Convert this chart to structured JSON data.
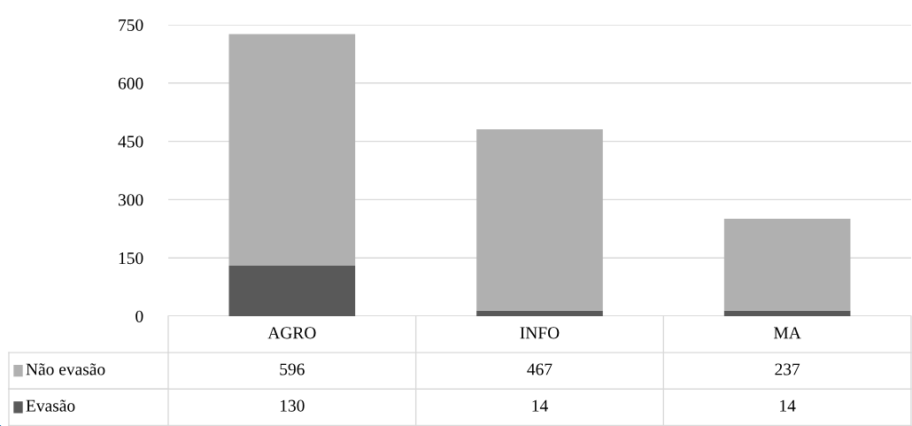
{
  "chart_data": {
    "type": "bar",
    "stacked": true,
    "categories": [
      "AGRO",
      "INFO",
      "MA"
    ],
    "series": [
      {
        "name": "Evasão",
        "color": "#595959",
        "values": [
          130,
          14,
          14
        ]
      },
      {
        "name": "Não evasão",
        "color": "#b0b0b0",
        "values": [
          596,
          467,
          237
        ]
      }
    ],
    "ylim": [
      0,
      750
    ],
    "yticks": [
      0,
      150,
      300,
      450,
      600,
      750
    ],
    "grid": "y",
    "data_labels": true,
    "legend": "bottom"
  }
}
